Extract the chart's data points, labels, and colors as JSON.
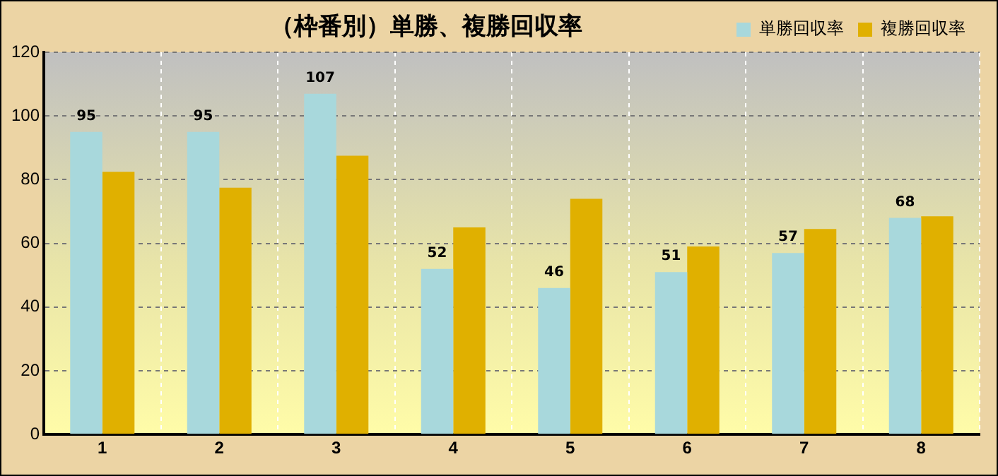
{
  "chart_data": {
    "type": "bar",
    "title": "（枠番別）単勝、複勝回収率",
    "categories": [
      "1",
      "2",
      "3",
      "4",
      "5",
      "6",
      "7",
      "8"
    ],
    "series": [
      {
        "name": "単勝回収率",
        "color": "#a8d8dc",
        "values": [
          95,
          95,
          107,
          52,
          46,
          51,
          57,
          68
        ],
        "value_labels": [
          "95",
          "95",
          "107",
          "52",
          "46",
          "51",
          "57",
          "68"
        ]
      },
      {
        "name": "複勝回収率",
        "color": "#e0b000",
        "values": [
          82.5,
          77.5,
          87.5,
          65,
          74,
          59,
          64.5,
          68.5
        ]
      }
    ],
    "ylim": [
      0,
      120
    ],
    "yticks": [
      0,
      20,
      40,
      60,
      80,
      100,
      120
    ],
    "grid": true,
    "legend": "top right"
  }
}
